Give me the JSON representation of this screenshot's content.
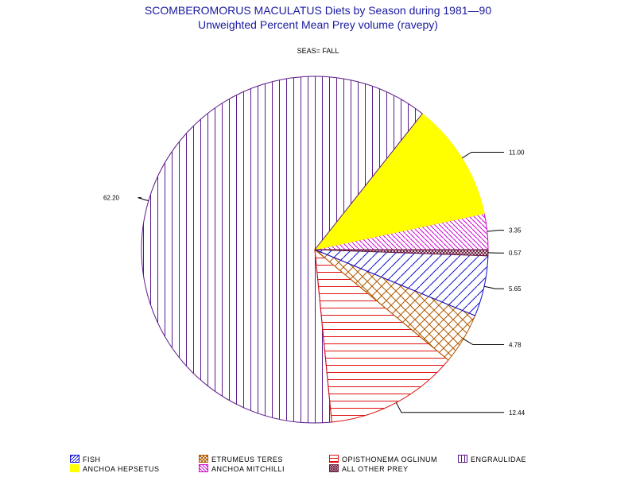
{
  "title": "SCOMBEROMORUS MACULATUS Diets by Season during 1981—90",
  "subtitle": "Unweighted Percent Mean Prey volume (ravepy)",
  "by_label": "SEAS= FALL",
  "chart_data": {
    "type": "pie",
    "title": "SCOMBEROMORUS MACULATUS Diets by Season during 1981—90",
    "subtitle": "Unweighted Percent Mean Prey volume (ravepy)",
    "by_group": "SEAS= FALL",
    "start_angle_deg": 0,
    "direction": "counterclockwise",
    "slices": [
      {
        "name": "ANCHOA MITCHILLI",
        "value": 3.35,
        "label": "3.35",
        "color": "#d000d0",
        "pattern": "diag-down"
      },
      {
        "name": "ANCHOA HEPSETUS",
        "value": 11.0,
        "label": "11.00",
        "color": "#ffff00",
        "pattern": "solid"
      },
      {
        "name": "ENGRAULIDAE",
        "value": 62.2,
        "label": "62.20",
        "color": "#5a1a8a",
        "pattern": "vertical"
      },
      {
        "name": "OPISTHONEMA OGLINUM",
        "value": 12.44,
        "label": "12.44",
        "color": "#e01010",
        "pattern": "horizontal"
      },
      {
        "name": "ETRUMEUS TERES",
        "value": 4.78,
        "label": "4.78",
        "color": "#b05a00",
        "pattern": "cross"
      },
      {
        "name": "FISH",
        "value": 5.65,
        "label": "5.65",
        "color": "#1010d0",
        "pattern": "diag-up"
      },
      {
        "name": "ALL OTHER PREY",
        "value": 0.57,
        "label": "0.57",
        "color": "#6a1a3a",
        "pattern": "crosshatch"
      }
    ]
  },
  "legend": [
    {
      "label": "FISH",
      "color": "#1010d0",
      "pattern": "diag-up"
    },
    {
      "label": "ETRUMEUS TERES",
      "color": "#b05a00",
      "pattern": "cross"
    },
    {
      "label": "OPISTHONEMA OGLINUM",
      "color": "#e01010",
      "pattern": "horizontal"
    },
    {
      "label": "ENGRAULIDAE",
      "color": "#5a1a8a",
      "pattern": "vertical"
    },
    {
      "label": "ANCHOA HEPSETUS",
      "color": "#ffff00",
      "pattern": "solid"
    },
    {
      "label": "ANCHOA MITCHILLI",
      "color": "#d000d0",
      "pattern": "diag-down"
    },
    {
      "label": "ALL OTHER PREY",
      "color": "#6a1a3a",
      "pattern": "crosshatch"
    }
  ]
}
